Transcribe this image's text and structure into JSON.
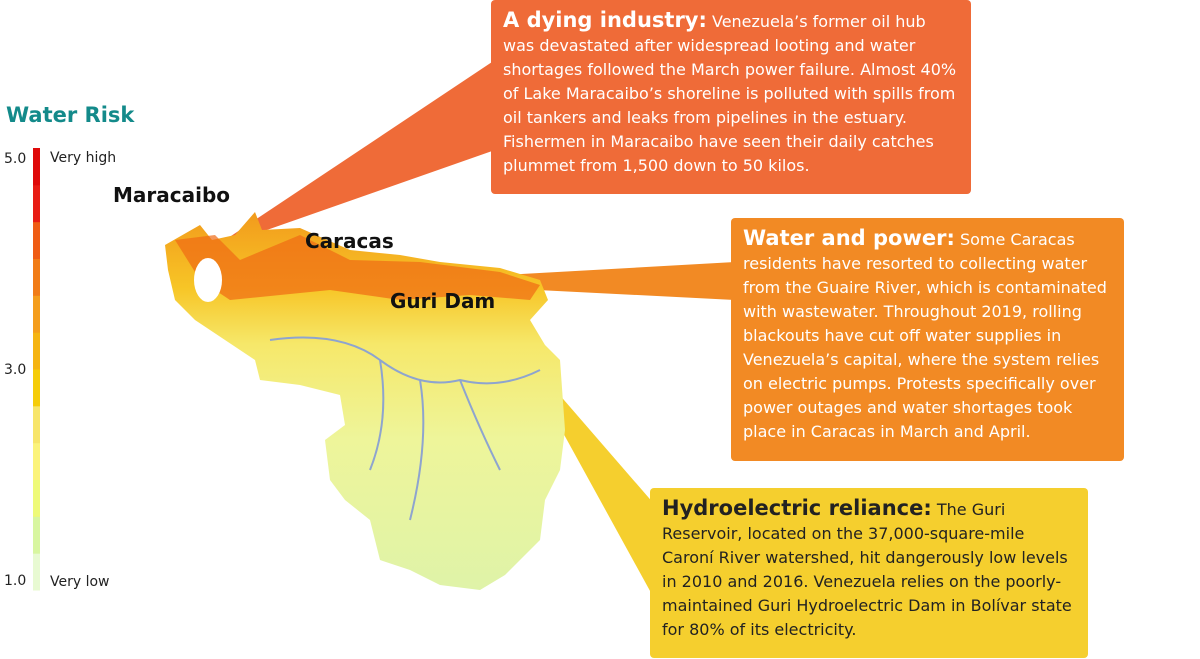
{
  "legend": {
    "title": "Water Risk",
    "range": [
      1,
      5
    ],
    "ticks": [
      {
        "value": 5,
        "label": "5.0"
      },
      {
        "value": 3,
        "label": "3.0"
      },
      {
        "value": 1,
        "label": "1.0"
      }
    ],
    "high_label": "Very high",
    "low_label": "Very low",
    "colors": [
      "#e8fad2",
      "#d8f6a0",
      "#eefa78",
      "#fbf37a",
      "#f7e56a",
      "#f5cc08",
      "#f5b412",
      "#f49d1c",
      "#f17c17",
      "#ef5c14",
      "#e81c14",
      "#df0a0a"
    ]
  },
  "places": [
    "Maracaibo",
    "Caracas",
    "Guri Dam"
  ],
  "callouts": [
    {
      "heading": "A dying industry:",
      "body": "Venezuela’s former oil hub was devastated after widespread looting and water shortages followed the March power failure. Almost 40% of Lake Maracaibo’s shoreline is polluted with spills from oil tankers and leaks from pipelines in the estuary. Fishermen in Maracaibo have seen their daily catches plummet from 1,500 down to 50 kilos."
    },
    {
      "heading": "Water and power:",
      "body": "Some Caracas residents have resorted to collecting water from the Guaire River, which is contaminated with wastewater. Throughout 2019, rolling blackouts have cut off water supplies in Venezuela’s capital, where the system relies on electric pumps. Protests specifically over power outages and water shortages took place in Caracas in March and April."
    },
    {
      "heading": "Hydroelectric reliance:",
      "body": "The Guri Reservoir, located on the 37,000-square-mile Caroní River watershed, hit dangerously low levels in 2010 and 2016. Venezuela relies on the poorly-maintained Guri Hydroelectric Dam in Bolívar state for 80% of its electricity."
    }
  ]
}
